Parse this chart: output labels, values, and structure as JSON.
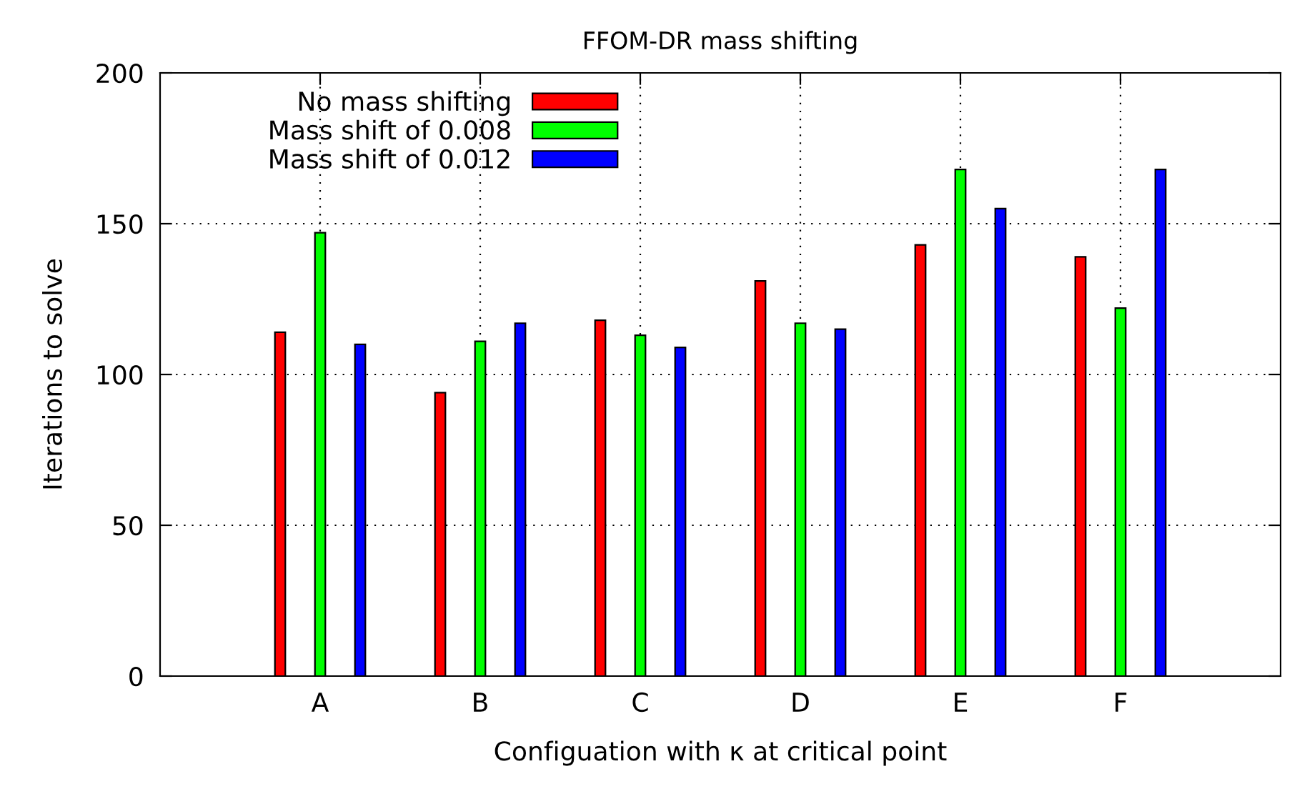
{
  "chart_data": {
    "type": "bar",
    "title": "FFOM-DR mass shifting",
    "xlabel": "Configuation with κ at critical point",
    "ylabel": "Iterations to solve",
    "categories": [
      "A",
      "B",
      "C",
      "D",
      "E",
      "F"
    ],
    "series": [
      {
        "name": "No mass shifting",
        "color": "#ff0000",
        "values": [
          114,
          94,
          118,
          131,
          143,
          139
        ]
      },
      {
        "name": "Mass shift of 0.008",
        "color": "#00ff00",
        "values": [
          147,
          111,
          113,
          117,
          168,
          122
        ]
      },
      {
        "name": "Mass shift of 0.012",
        "color": "#0000ff",
        "values": [
          110,
          117,
          109,
          115,
          155,
          168
        ]
      }
    ],
    "ylim": [
      0,
      200
    ],
    "yticks": [
      0,
      50,
      100,
      150,
      200
    ],
    "grid": true,
    "legend": "top left"
  }
}
